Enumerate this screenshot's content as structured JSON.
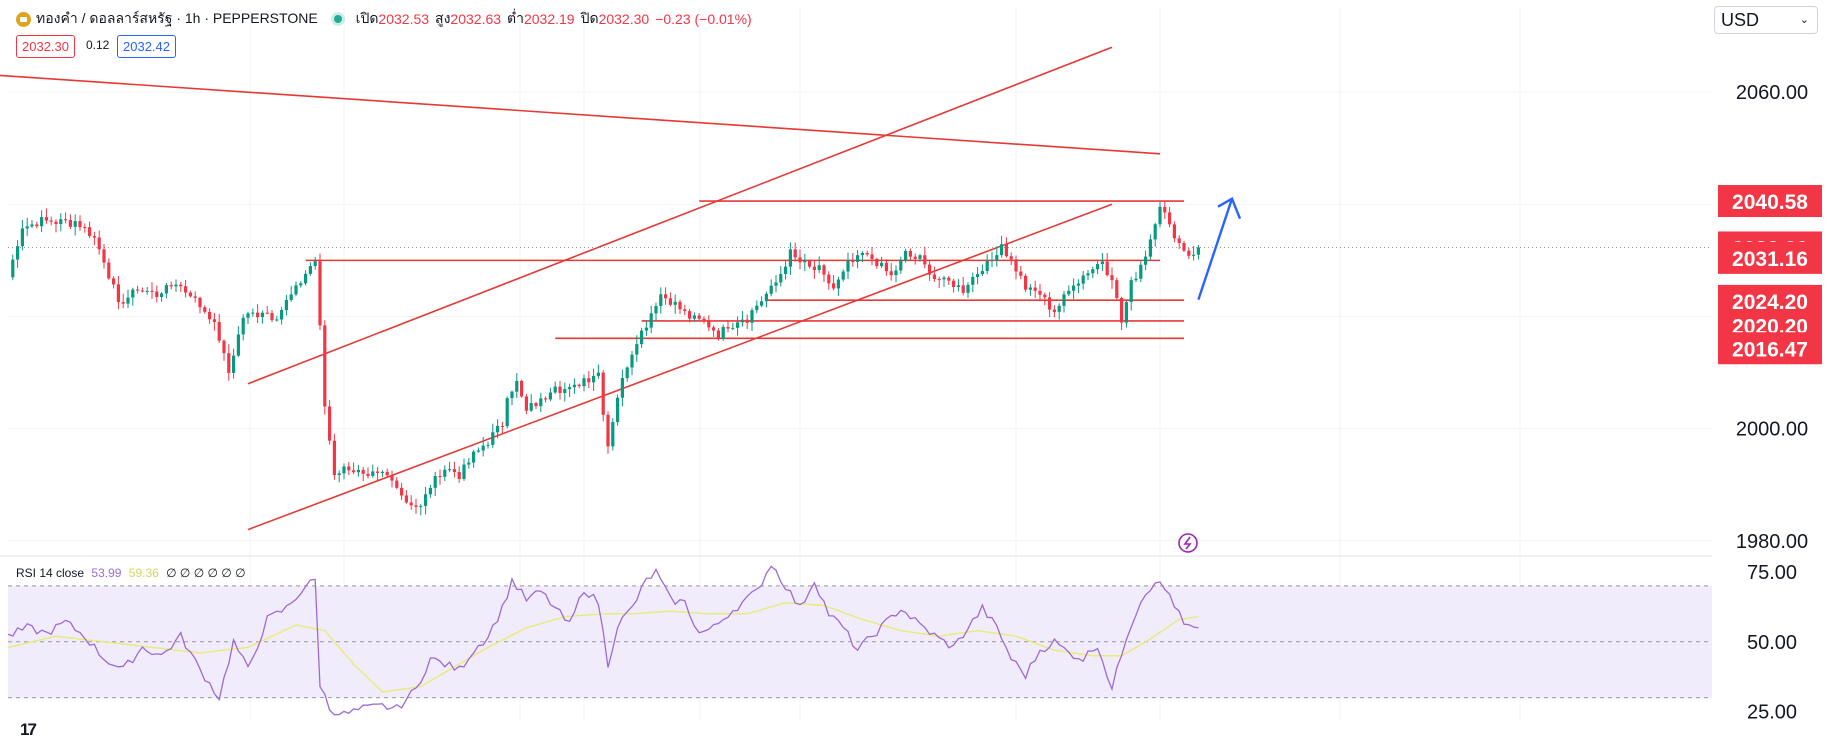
{
  "header": {
    "symbol": "ทองคำ / ดอลลาร์สหรัฐ · 1h · PEPPERSTONE",
    "open_label": "เปิด",
    "open": "2032.53",
    "high_label": "สูง",
    "high": "2032.63",
    "low_label": "ต่ำ",
    "low": "2032.19",
    "close_label": "ปิด",
    "close": "2032.30",
    "change": "−0.23 (−0.01%)",
    "bid": "2032.30",
    "spread": "0.12",
    "ask": "2032.42"
  },
  "currency_select": {
    "value": "USD"
  },
  "colors": {
    "up": "#089981",
    "down": "#f23645",
    "line": "#e53935",
    "rsi": "#9c6ad4",
    "rsi_ma": "#e8ea7a",
    "arrow": "#2962ff",
    "band": "#f1ecfb"
  },
  "chart_data": [
    {
      "type": "candlestick",
      "title": "ทองคำ / ดอลลาร์สหรัฐ · 1h · PEPPERSTONE",
      "ylim": [
        1978,
        2075
      ],
      "y_ticks": [
        "2060.00",
        "2000.00",
        "1980.00"
      ],
      "last_price": 2032.3,
      "price_labels": [
        "2040.58",
        "2032.30",
        "2031.16",
        "2024.20",
        "2020.20",
        "2016.47"
      ],
      "horizontal_levels": [
        2040.58,
        2031.16,
        2024.2,
        2020.2,
        2016.47
      ],
      "close_path": [
        [
          0,
          2027
        ],
        [
          3,
          2036
        ],
        [
          8,
          2037
        ],
        [
          14,
          2037
        ],
        [
          18,
          2034
        ],
        [
          20,
          2030
        ],
        [
          23,
          2022
        ],
        [
          27,
          2025
        ],
        [
          31,
          2024
        ],
        [
          35,
          2026
        ],
        [
          38,
          2024
        ],
        [
          42,
          2020
        ],
        [
          44,
          2016
        ],
        [
          46,
          2010
        ],
        [
          49,
          2020
        ],
        [
          53,
          2021
        ],
        [
          56,
          2020
        ],
        [
          60,
          2025
        ],
        [
          63,
          2029
        ],
        [
          64,
          2030
        ],
        [
          65,
          2018
        ],
        [
          66,
          2004
        ],
        [
          68,
          1992
        ],
        [
          71,
          1993
        ],
        [
          75,
          1991
        ],
        [
          78,
          1992
        ],
        [
          81,
          1990
        ],
        [
          83,
          1987
        ],
        [
          86,
          1986
        ],
        [
          88,
          1990
        ],
        [
          91,
          1993
        ],
        [
          94,
          1992
        ],
        [
          97,
          1995
        ],
        [
          100,
          1998
        ],
        [
          103,
          2001
        ],
        [
          104,
          2006
        ],
        [
          106,
          2008
        ],
        [
          108,
          2003
        ],
        [
          111,
          2005
        ],
        [
          114,
          2008
        ],
        [
          116,
          2007
        ],
        [
          118,
          2007
        ],
        [
          120,
          2009
        ],
        [
          123,
          2010
        ],
        [
          125,
          1997
        ],
        [
          127,
          2006
        ],
        [
          130,
          2014
        ],
        [
          133,
          2019
        ],
        [
          136,
          2024
        ],
        [
          139,
          2022
        ],
        [
          142,
          2020
        ],
        [
          145,
          2019
        ],
        [
          148,
          2017
        ],
        [
          151,
          2019
        ],
        [
          154,
          2020
        ],
        [
          157,
          2023
        ],
        [
          160,
          2026
        ],
        [
          163,
          2031
        ],
        [
          166,
          2029
        ],
        [
          169,
          2028
        ],
        [
          172,
          2025
        ],
        [
          175,
          2029
        ],
        [
          178,
          2031
        ],
        [
          181,
          2030
        ],
        [
          184,
          2027
        ],
        [
          187,
          2031
        ],
        [
          190,
          2030
        ],
        [
          193,
          2027
        ],
        [
          196,
          2026
        ],
        [
          199,
          2025
        ],
        [
          202,
          2028
        ],
        [
          205,
          2030
        ],
        [
          207,
          2033
        ],
        [
          209,
          2030
        ],
        [
          212,
          2025
        ],
        [
          215,
          2024
        ],
        [
          218,
          2021
        ],
        [
          220,
          2023
        ],
        [
          222,
          2026
        ],
        [
          225,
          2028
        ],
        [
          228,
          2030
        ],
        [
          230,
          2027
        ],
        [
          232,
          2019
        ],
        [
          234,
          2026
        ],
        [
          237,
          2031
        ],
        [
          240,
          2040
        ],
        [
          242,
          2036
        ],
        [
          244,
          2033
        ],
        [
          246,
          2031
        ],
        [
          248,
          2032.3
        ]
      ],
      "rsi_ylim": [
        22,
        80
      ],
      "rsi_ticks": [
        "75.00",
        "50.00",
        "25.00"
      ],
      "rsi_band": [
        30,
        70
      ],
      "rsi_path": [
        [
          0,
          52
        ],
        [
          4,
          55
        ],
        [
          8,
          53
        ],
        [
          12,
          57
        ],
        [
          16,
          52
        ],
        [
          20,
          44
        ],
        [
          24,
          40
        ],
        [
          28,
          48
        ],
        [
          32,
          45
        ],
        [
          36,
          52
        ],
        [
          40,
          40
        ],
        [
          44,
          30
        ],
        [
          47,
          50
        ],
        [
          50,
          40
        ],
        [
          54,
          58
        ],
        [
          58,
          62
        ],
        [
          62,
          70
        ],
        [
          64,
          72
        ],
        [
          65,
          35
        ],
        [
          67,
          26
        ],
        [
          70,
          24
        ],
        [
          74,
          26
        ],
        [
          78,
          27
        ],
        [
          81,
          26
        ],
        [
          85,
          33
        ],
        [
          88,
          44
        ],
        [
          91,
          42
        ],
        [
          94,
          40
        ],
        [
          97,
          47
        ],
        [
          100,
          52
        ],
        [
          103,
          62
        ],
        [
          105,
          72
        ],
        [
          108,
          65
        ],
        [
          111,
          68
        ],
        [
          114,
          62
        ],
        [
          117,
          56
        ],
        [
          120,
          69
        ],
        [
          123,
          64
        ],
        [
          125,
          42
        ],
        [
          127,
          56
        ],
        [
          130,
          62
        ],
        [
          133,
          72
        ],
        [
          135,
          75
        ],
        [
          138,
          65
        ],
        [
          141,
          64
        ],
        [
          144,
          53
        ],
        [
          147,
          55
        ],
        [
          150,
          60
        ],
        [
          153,
          64
        ],
        [
          156,
          68
        ],
        [
          159,
          78
        ],
        [
          162,
          70
        ],
        [
          165,
          62
        ],
        [
          168,
          72
        ],
        [
          171,
          60
        ],
        [
          174,
          55
        ],
        [
          177,
          47
        ],
        [
          180,
          52
        ],
        [
          183,
          57
        ],
        [
          186,
          62
        ],
        [
          190,
          56
        ],
        [
          194,
          51
        ],
        [
          197,
          48
        ],
        [
          200,
          55
        ],
        [
          203,
          62
        ],
        [
          206,
          55
        ],
        [
          209,
          44
        ],
        [
          212,
          38
        ],
        [
          215,
          47
        ],
        [
          218,
          50
        ],
        [
          221,
          46
        ],
        [
          224,
          44
        ],
        [
          227,
          49
        ],
        [
          230,
          33
        ],
        [
          233,
          52
        ],
        [
          236,
          65
        ],
        [
          239,
          72
        ],
        [
          242,
          67
        ],
        [
          245,
          56
        ],
        [
          248,
          54
        ]
      ],
      "rsi_ma_path": [
        [
          0,
          48
        ],
        [
          10,
          52
        ],
        [
          20,
          50
        ],
        [
          30,
          48
        ],
        [
          40,
          46
        ],
        [
          50,
          48
        ],
        [
          60,
          56
        ],
        [
          66,
          54
        ],
        [
          72,
          42
        ],
        [
          78,
          32
        ],
        [
          86,
          34
        ],
        [
          94,
          42
        ],
        [
          100,
          48
        ],
        [
          108,
          55
        ],
        [
          116,
          59
        ],
        [
          124,
          60
        ],
        [
          130,
          60
        ],
        [
          138,
          61
        ],
        [
          146,
          60
        ],
        [
          154,
          60
        ],
        [
          162,
          64
        ],
        [
          170,
          63
        ],
        [
          178,
          58
        ],
        [
          186,
          54
        ],
        [
          194,
          52
        ],
        [
          202,
          54
        ],
        [
          210,
          52
        ],
        [
          218,
          47
        ],
        [
          226,
          45
        ],
        [
          232,
          45
        ],
        [
          238,
          51
        ],
        [
          244,
          58
        ],
        [
          248,
          59
        ]
      ],
      "trend_lines": [
        {
          "from": [
            -2,
            2063
          ],
          "to": [
            240,
            2049
          ],
          "color": "down"
        },
        {
          "from": [
            62,
            2030
          ],
          "to": [
            240,
            2030
          ],
          "color": "down"
        },
        {
          "from": [
            50,
            2008
          ],
          "to": [
            230,
            2068
          ],
          "color": "down"
        },
        {
          "from": [
            50,
            1982
          ],
          "to": [
            230,
            2040
          ],
          "color": "down"
        },
        {
          "from": [
            144,
            2040.58
          ],
          "to": [
            245,
            2040.58
          ],
          "color": "down"
        },
        {
          "from": [
            158,
            2022.9
          ],
          "to": [
            245,
            2022.9
          ],
          "color": "down"
        },
        {
          "from": [
            132,
            2019.2
          ],
          "to": [
            245,
            2019.2
          ],
          "color": "down"
        },
        {
          "from": [
            114,
            2016.1
          ],
          "to": [
            245,
            2016.1
          ],
          "color": "down"
        }
      ],
      "arrow": {
        "from": [
          248,
          2023
        ],
        "to": [
          255,
          2041
        ]
      },
      "rsi_label": "RSI 14 close",
      "rsi_value": "53.99",
      "rsi_ma_value": "59.36",
      "rsi_extra": "∅ ∅ ∅ ∅ ∅ ∅"
    }
  ]
}
